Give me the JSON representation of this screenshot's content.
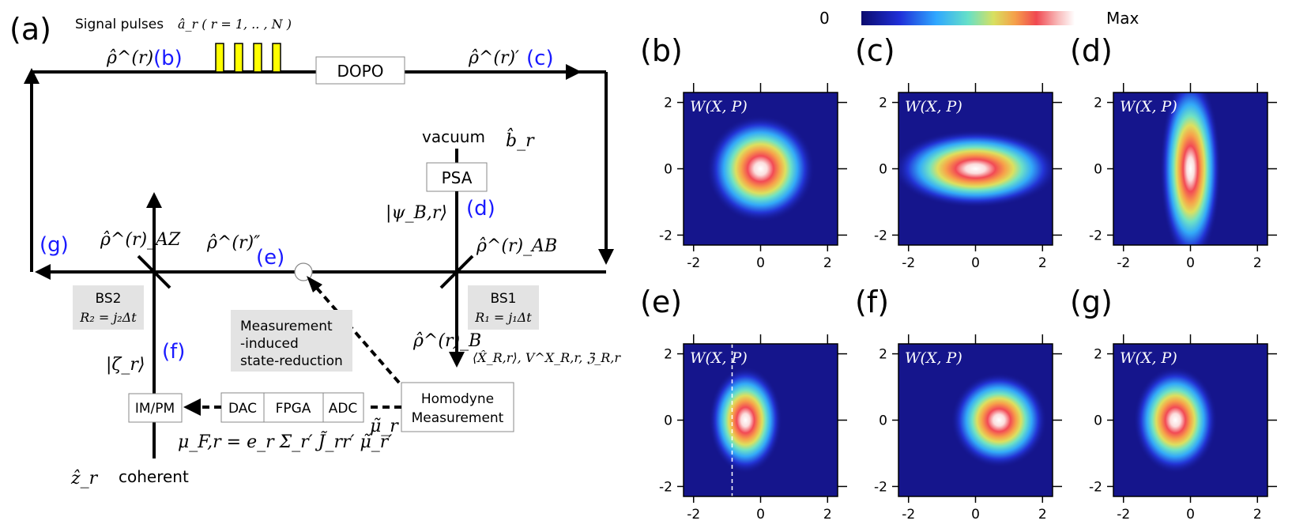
{
  "schematic": {
    "panel_label": "(a)",
    "signal_pulses_text": "Signal pulses",
    "signal_pulses_math": "â_r ( r = 1, .. , N )",
    "dopo": "DOPO",
    "psa": "PSA",
    "vacuum": "vacuum",
    "b_hat": "b̂_r",
    "rho_b": "ρ̂^(r)",
    "rho_c": "ρ̂^(r)′",
    "rho_e": "ρ̂^(r)″",
    "rho_az": "ρ̂^(r)_AZ",
    "rho_ab": "ρ̂^(r)_AB",
    "rho_b_out": "ρ̂^(r)_B",
    "psi_b": "|ψ_B,r⟩",
    "zeta": "|ζ_r⟩",
    "z_hat": "ẑ_r",
    "coherent": "coherent",
    "bs1": "BS1",
    "bs1_r": "R₁ = j₁Δt",
    "bs2": "BS2",
    "bs2_r": "R₂ = j₂Δt",
    "measurement_note": [
      "Measurement",
      "-induced",
      "state-reduction"
    ],
    "homodyne": [
      "Homodyne",
      "Measurement"
    ],
    "observables": "⟨X̂_R,r⟩, V^X_R,r, ℨ_R,r",
    "mu_tilde": "μ̃_r",
    "feedback_eq": "μ_F,r = e_r Σ_r′ J̃_rr′ μ̃_r′",
    "im_pm": "IM/PM",
    "dac": "DAC",
    "fpga": "FPGA",
    "adc": "ADC",
    "markers": {
      "b": "(b)",
      "c": "(c)",
      "d": "(d)",
      "e": "(e)",
      "f": "(f)",
      "g": "(g)"
    }
  },
  "colorbar": {
    "min_label": "0",
    "max_label": "Max"
  },
  "wigner_panels": {
    "axis_label": "W(X, P)",
    "ticks": [
      "-2",
      "0",
      "2"
    ],
    "panels": [
      {
        "label": "(b)",
        "cx": 0.0,
        "cy": 0.0,
        "sx": 0.62,
        "sy": 0.62,
        "dashed_x": null
      },
      {
        "label": "(c)",
        "cx": 0.0,
        "cy": 0.0,
        "sx": 0.95,
        "sy": 0.45,
        "dashed_x": null
      },
      {
        "label": "(d)",
        "cx": 0.0,
        "cy": 0.0,
        "sx": 0.35,
        "sy": 1.1,
        "dashed_x": null
      },
      {
        "label": "(e)",
        "cx": -0.45,
        "cy": 0.0,
        "sx": 0.42,
        "sy": 0.62,
        "dashed_x": -0.85
      },
      {
        "label": "(f)",
        "cx": 0.7,
        "cy": 0.0,
        "sx": 0.55,
        "sy": 0.55,
        "dashed_x": null
      },
      {
        "label": "(g)",
        "cx": -0.45,
        "cy": 0.0,
        "sx": 0.48,
        "sy": 0.62,
        "dashed_x": null
      }
    ]
  }
}
